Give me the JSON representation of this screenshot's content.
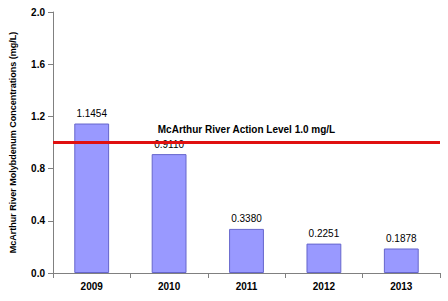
{
  "chart_data": {
    "type": "bar",
    "y_label": "McArthur River Molybdenum Concentrations (mg/L)",
    "categories": [
      "2009",
      "2010",
      "2011",
      "2012",
      "2013"
    ],
    "values": [
      1.1454,
      0.911,
      0.338,
      0.2251,
      0.1878
    ],
    "value_labels": [
      "1.1454",
      "0.9110",
      "0.3380",
      "0.2251",
      "0.1878"
    ],
    "data_labels": true,
    "color": "#9999ff",
    "ylim": [
      0,
      2
    ],
    "yticks": [
      {
        "value": 0,
        "label": "0.0"
      },
      0.4,
      0.8,
      1.2,
      1.6,
      {
        "value": 2,
        "label": "2.0"
      }
    ],
    "grid": false,
    "reference_line": {
      "value": 1.0,
      "label": "McArthur River Action Level 1.0 mg/L",
      "color": "#e01010"
    }
  }
}
